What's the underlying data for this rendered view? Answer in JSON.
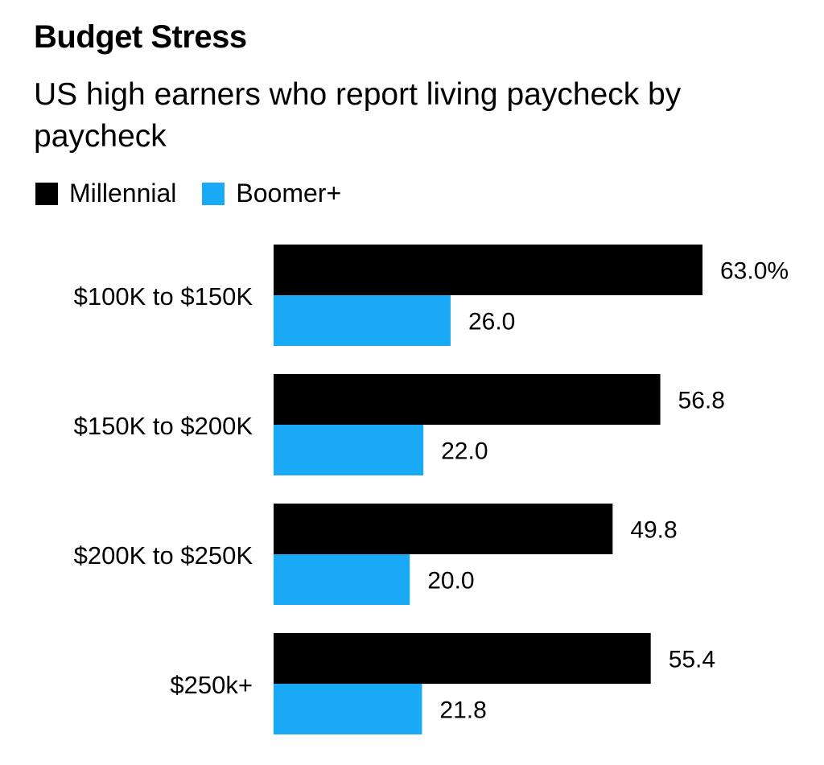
{
  "title": "Budget Stress",
  "subtitle": "US high earners who report living paycheck by paycheck",
  "chart_data": {
    "type": "bar",
    "orientation": "horizontal",
    "categories": [
      "$100K to $150K",
      "$150K to $200K",
      "$200K to $250K",
      "$250k+"
    ],
    "series": [
      {
        "name": "Millennial",
        "color": "#000000",
        "values": [
          63.0,
          56.8,
          49.8,
          55.4
        ],
        "labels": [
          "63.0%",
          "56.8",
          "49.8",
          "55.4"
        ]
      },
      {
        "name": "Boomer+",
        "color": "#1aa9f4",
        "values": [
          26.0,
          22.0,
          20.0,
          21.8
        ],
        "labels": [
          "26.0",
          "22.0",
          "20.0",
          "21.8"
        ]
      }
    ],
    "unit": "%",
    "xlim": [
      0,
      63
    ],
    "legend": "top-left",
    "grid": false
  }
}
